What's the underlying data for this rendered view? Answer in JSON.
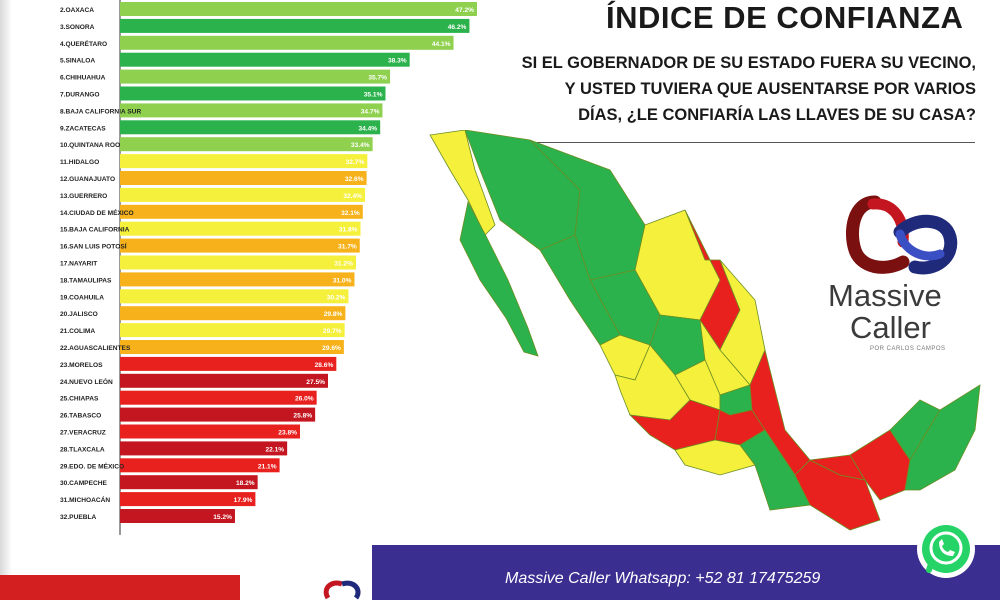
{
  "title": "ÍNDICE DE CONFIANZA",
  "question_lines": [
    "SI EL GOBERNADOR DE SU ESTADO FUERA SU VECINO,",
    "Y USTED TUVIERA QUE AUSENTARSE POR VARIOS",
    "DÍAS, ¿LE CONFIARÍA LAS LLAVES DE SU CASA?"
  ],
  "brand": {
    "word1": "Massive",
    "word2": "Caller",
    "sub": "POR CARLOS CAMPOS"
  },
  "footer": {
    "text": "Massive Caller Whatsapp: +52    81 17475259"
  },
  "colors": {
    "green": "#2bb24c",
    "light_green": "#8fd14f",
    "yellow": "#f5f03c",
    "orange": "#f7b21b",
    "red": "#e8211f",
    "dark_red": "#c41620"
  },
  "icons": {
    "whatsapp": "whatsapp-icon",
    "logo": "massive-caller-logo"
  },
  "chart_data": {
    "type": "bar",
    "orientation": "horizontal",
    "categories": [
      "2.OAXACA",
      "3.SONORA",
      "4.QUERÉTARO",
      "5.SINALOA",
      "6.CHIHUAHUA",
      "7.DURANGO",
      "8.BAJA CALIFORNIA SUR",
      "9.ZACATECAS",
      "10.QUINTANA ROO",
      "11.HIDALGO",
      "12.GUANAJUATO",
      "13.GUERRERO",
      "14.CIUDAD DE MÉXICO",
      "15.BAJA CALIFORNIA",
      "16.SAN LUIS POTOSÍ",
      "17.NAYARIT",
      "18.TAMAULIPAS",
      "19.COAHUILA",
      "20.JALISCO",
      "21.COLIMA",
      "22.AGUASCALIENTES",
      "23.MORELOS",
      "24.NUEVO LEÓN",
      "25.CHIAPAS",
      "26.TABASCO",
      "27.VERACRUZ",
      "28.TLAXCALA",
      "29.EDO. DE MÉXICO",
      "30.CAMPECHE",
      "31.MICHOACÁN",
      "32.PUEBLA"
    ],
    "values": [
      47.2,
      46.2,
      44.1,
      38.3,
      35.7,
      35.1,
      34.7,
      34.4,
      33.4,
      32.7,
      32.6,
      32.4,
      32.1,
      31.8,
      31.7,
      31.2,
      31.0,
      30.2,
      29.8,
      29.7,
      29.6,
      28.6,
      27.5,
      26.0,
      25.8,
      23.8,
      22.1,
      21.1,
      18.2,
      17.9,
      15.2
    ],
    "value_labels": [
      "47.2%",
      "46.2%",
      "44.1%",
      "38.3%",
      "35.7%",
      "35.1%",
      "34.7%",
      "34.4%",
      "33.4%",
      "32.7%",
      "32.6%",
      "32.4%",
      "32.1%",
      "31.8%",
      "31.7%",
      "31.2%",
      "31.0%",
      "30.2%",
      "29.8%",
      "29.7%",
      "29.6%",
      "28.6%",
      "27.5%",
      "26.0%",
      "25.8%",
      "23.8%",
      "22.1%",
      "21.1%",
      "18.2%",
      "17.9%",
      "15.2%"
    ],
    "bar_colors": [
      "light_green",
      "green",
      "light_green",
      "green",
      "light_green",
      "green",
      "light_green",
      "green",
      "light_green",
      "yellow",
      "orange",
      "yellow",
      "orange",
      "yellow",
      "orange",
      "yellow",
      "orange",
      "yellow",
      "orange",
      "yellow",
      "orange",
      "red",
      "dark_red",
      "red",
      "dark_red",
      "red",
      "dark_red",
      "red",
      "dark_red",
      "red",
      "dark_red"
    ],
    "xlim": [
      0,
      50
    ],
    "grid": false,
    "title": "ÍNDICE DE CONFIANZA"
  }
}
